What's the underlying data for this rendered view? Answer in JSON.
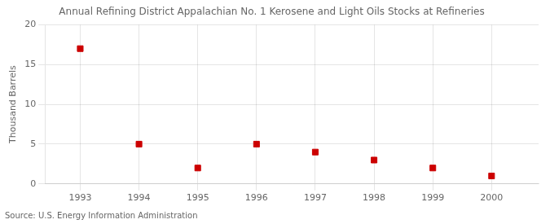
{
  "chart_data": {
    "type": "scatter",
    "title": "Annual Refining District Appalachian No. 1 Kerosene and Light Oils Stocks at Refineries",
    "ylabel": "Thousand Barrels",
    "source": "Source: U.S. Energy Information Administration",
    "x": [
      1993,
      1994,
      1995,
      1996,
      1997,
      1998,
      1999,
      2000
    ],
    "values": [
      17,
      5,
      2,
      5,
      4,
      3,
      2,
      1
    ],
    "color": "#cc0000",
    "marker": "square",
    "xlim": [
      1992.4,
      2000.8
    ],
    "xticks": [
      1993,
      1994,
      1995,
      1996,
      1997,
      1998,
      1999,
      2000
    ],
    "ylim": [
      0,
      20
    ],
    "yticks": [
      0,
      5,
      10,
      15,
      20
    ],
    "grid": true
  }
}
